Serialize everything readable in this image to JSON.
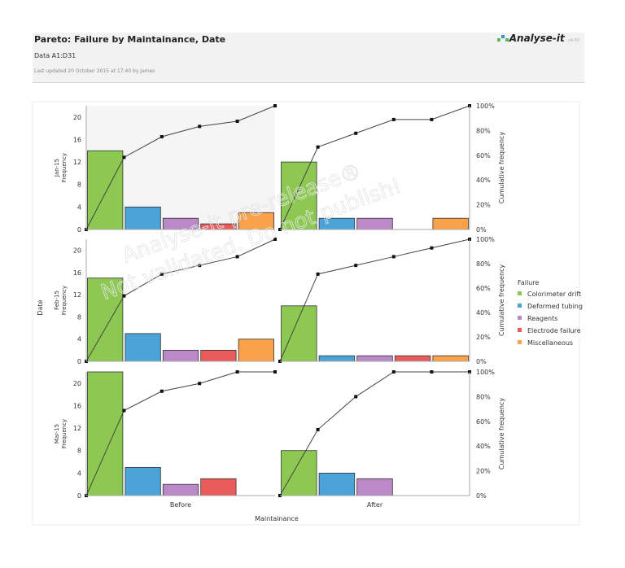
{
  "header": {
    "title": "Pareto: Failure by Maintainance, Date",
    "data_range": "Data A1:D31",
    "last_updated": "Last updated 20 October 2015 at 17:40 by James",
    "logo": "Analyse-it",
    "version": "v4.50"
  },
  "watermark": {
    "line1": "Analyse-it pre-release®",
    "line2": "Not validated. Do not publish!"
  },
  "chart_data": {
    "type": "bar",
    "subtype": "pareto",
    "xlabel": "Maintainance",
    "ylabel": "Date",
    "columns": [
      "Before",
      "After"
    ],
    "rows": [
      "Jan-15",
      "Feb-15",
      "Mar-15"
    ],
    "row_axis_label": "Frequency",
    "right_axis_label": "Cumulative frequency",
    "categories": [
      "Colorimeter drift",
      "Deformed tubing",
      "Reagents",
      "Electrode failure",
      "Miscellaneous"
    ],
    "colors": [
      "#8cc852",
      "#4ba3d8",
      "#bb88c8",
      "#e85c5c",
      "#f9a24a"
    ],
    "ylim": [
      0,
      22
    ],
    "yticks": [
      0,
      4,
      8,
      12,
      16,
      20
    ],
    "y2ticks": [
      "0%",
      "20%",
      "40%",
      "60%",
      "80%",
      "100%"
    ],
    "legend": {
      "title": "Failure",
      "placement": "right"
    },
    "panels": [
      {
        "row": "Jan-15",
        "column": "Before",
        "values": [
          14,
          4,
          2,
          1,
          3
        ]
      },
      {
        "row": "Jan-15",
        "column": "After",
        "values": [
          12,
          2,
          2,
          0,
          2
        ]
      },
      {
        "row": "Feb-15",
        "column": "Before",
        "values": [
          15,
          5,
          2,
          2,
          4
        ]
      },
      {
        "row": "Feb-15",
        "column": "After",
        "values": [
          10,
          1,
          1,
          1,
          1
        ]
      },
      {
        "row": "Mar-15",
        "column": "Before",
        "values": [
          22,
          5,
          2,
          3,
          0
        ]
      },
      {
        "row": "Mar-15",
        "column": "After",
        "values": [
          8,
          4,
          3,
          0,
          0
        ]
      }
    ]
  }
}
